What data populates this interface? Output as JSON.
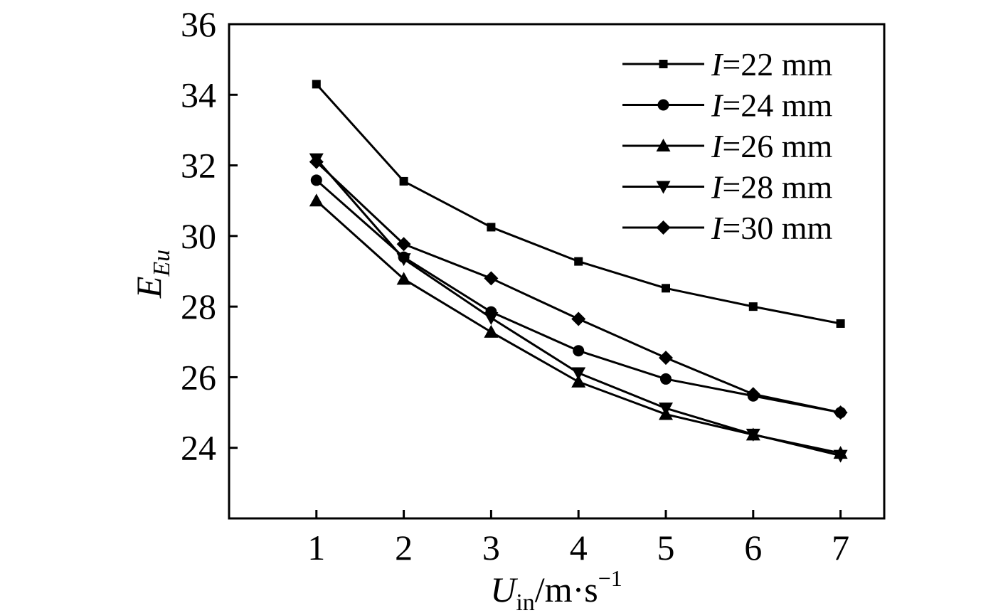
{
  "chart_data": {
    "type": "line",
    "x": [
      1,
      2,
      3,
      4,
      5,
      6,
      7
    ],
    "xlim": [
      0,
      7.5
    ],
    "ylim": [
      22,
      36
    ],
    "xticks": [
      "1",
      "2",
      "3",
      "4",
      "5",
      "6",
      "7"
    ],
    "yticks": [
      "24",
      "26",
      "28",
      "30",
      "32",
      "34",
      "36"
    ],
    "xlabel": {
      "main": "U",
      "sub": "in",
      "unit": "/m·s",
      "sup": "−1"
    },
    "ylabel": {
      "main": "E",
      "sub": "Eu"
    },
    "legend_position": "top-right",
    "grid": false,
    "line_color": "#000000",
    "series": [
      {
        "name": "I=22 mm",
        "name_var": "I",
        "name_rest": "=22 mm",
        "marker": "square",
        "values": [
          34.3,
          31.55,
          30.25,
          29.28,
          28.52,
          28.0,
          27.52
        ]
      },
      {
        "name": "I=24 mm",
        "name_var": "I",
        "name_rest": "=24 mm",
        "marker": "circle",
        "values": [
          31.58,
          29.4,
          27.85,
          26.75,
          25.95,
          25.47,
          25.0
        ]
      },
      {
        "name": "I=26 mm",
        "name_var": "I",
        "name_rest": "=26 mm",
        "marker": "triangle-up",
        "values": [
          31.0,
          28.78,
          27.28,
          25.87,
          24.95,
          24.37,
          23.85
        ]
      },
      {
        "name": "I=28 mm",
        "name_var": "I",
        "name_rest": "=28 mm",
        "marker": "triangle-down",
        "values": [
          32.18,
          29.35,
          27.68,
          26.12,
          25.12,
          24.38,
          23.78
        ]
      },
      {
        "name": "I=30 mm",
        "name_var": "I",
        "name_rest": "=30 mm",
        "marker": "diamond",
        "values": [
          32.1,
          29.77,
          28.8,
          27.65,
          26.55,
          25.52,
          25.0
        ]
      }
    ]
  }
}
